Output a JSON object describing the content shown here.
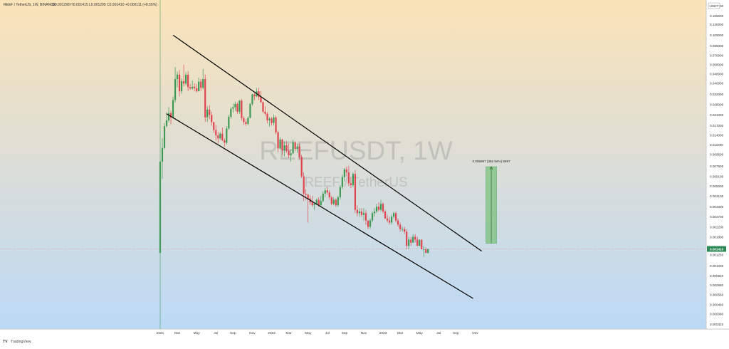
{
  "header": {
    "symbol": "REEF / TetherUS, 1W, BINANCE",
    "ohlc": "O0.001298  H0.001415  L0.001295  C0.001410  +0.000111 (+8.55%)"
  },
  "watermark": {
    "ticker": "REEFUSDT, 1W",
    "name": "REEF / TetherUS"
  },
  "currency_badge": "USDT",
  "price_label": "0.001410",
  "annotation": "0.005997 (382.94%) 5997",
  "branding": "TradingView",
  "colors": {
    "bg_top": "#fbe3b8",
    "bg_bottom": "#bcd9f6",
    "up": "#26a69a",
    "down": "#ef5350",
    "up_candle": "#3d9a55",
    "down_candle": "#e0454f",
    "current_price": "#2e8b57",
    "target_box": "#7ec27e"
  },
  "chart_data": {
    "type": "candlestick",
    "title": "REEF / TetherUS, 1W, BINANCE",
    "scale": "log",
    "y_ticks": [
      "0.190000",
      "0.155000",
      "0.130000",
      "0.105000",
      "0.085000",
      "0.070000",
      "0.058000",
      "0.048000",
      "0.040000",
      "0.032000",
      "0.026000",
      "0.021000",
      "0.017000",
      "0.014000",
      "0.011500",
      "0.009500",
      "0.007500",
      "0.006100",
      "0.005000",
      "0.004100",
      "0.003300",
      "0.002700",
      "0.002200",
      "0.001800",
      "0.001450",
      "0.001250",
      "0.001000",
      "0.000820",
      "0.000680",
      "0.000560",
      "0.000460",
      "0.000380",
      "0.000310"
    ],
    "y_tick_values": [
      0.19,
      0.155,
      0.13,
      0.105,
      0.085,
      0.07,
      0.058,
      0.048,
      0.04,
      0.032,
      0.026,
      0.021,
      0.017,
      0.014,
      0.0115,
      0.0095,
      0.0075,
      0.0061,
      0.005,
      0.0041,
      0.0033,
      0.0027,
      0.0022,
      0.0018,
      0.00145,
      0.00125,
      0.001,
      0.00082,
      0.00068,
      0.00056,
      0.00046,
      0.00038,
      0.00031
    ],
    "x_ticks": [
      "2021",
      "Mar",
      "May",
      "Jul",
      "Sep",
      "Nov",
      "2022",
      "Mar",
      "May",
      "Jul",
      "Sep",
      "Nov",
      "2023",
      "Mar",
      "May",
      "Jul",
      "Sep",
      "Nov"
    ],
    "x_tick_index": [
      0,
      8,
      17,
      26,
      34,
      43,
      52,
      60,
      69,
      78,
      86,
      95,
      104,
      112,
      121,
      130,
      138,
      147
    ],
    "candles": [
      [
        0.0013,
        0.0082,
        0.0013,
        0.0082
      ],
      [
        0.0082,
        0.0131,
        0.0058,
        0.0108
      ],
      [
        0.0108,
        0.0178,
        0.0105,
        0.0168
      ],
      [
        0.0168,
        0.0222,
        0.0163,
        0.0188
      ],
      [
        0.0188,
        0.0246,
        0.0181,
        0.0218
      ],
      [
        0.0218,
        0.0228,
        0.0175,
        0.0199
      ],
      [
        0.0199,
        0.0305,
        0.0195,
        0.0284
      ],
      [
        0.0284,
        0.0554,
        0.027,
        0.0433
      ],
      [
        0.0433,
        0.0504,
        0.0366,
        0.0474
      ],
      [
        0.0474,
        0.052,
        0.0305,
        0.0338
      ],
      [
        0.0338,
        0.0439,
        0.0322,
        0.0415
      ],
      [
        0.0415,
        0.058,
        0.0374,
        0.0395
      ],
      [
        0.0395,
        0.0495,
        0.038,
        0.0472
      ],
      [
        0.0472,
        0.051,
        0.034,
        0.0368
      ],
      [
        0.0368,
        0.0392,
        0.0348,
        0.0358
      ],
      [
        0.0358,
        0.0421,
        0.0349,
        0.0371
      ],
      [
        0.0371,
        0.0398,
        0.0338,
        0.036
      ],
      [
        0.036,
        0.0392,
        0.033,
        0.0339
      ],
      [
        0.0339,
        0.0446,
        0.0336,
        0.0411
      ],
      [
        0.0411,
        0.0433,
        0.0341,
        0.0363
      ],
      [
        0.0363,
        0.0531,
        0.0352,
        0.0433
      ],
      [
        0.0433,
        0.0474,
        0.0183,
        0.02
      ],
      [
        0.02,
        0.025,
        0.0182,
        0.0234
      ],
      [
        0.0234,
        0.0256,
        0.0193,
        0.021
      ],
      [
        0.021,
        0.0224,
        0.0169,
        0.0182
      ],
      [
        0.0182,
        0.0182,
        0.0146,
        0.0155
      ],
      [
        0.0155,
        0.0171,
        0.0125,
        0.0139
      ],
      [
        0.0139,
        0.0149,
        0.0118,
        0.0131
      ],
      [
        0.0131,
        0.0149,
        0.0128,
        0.0144
      ],
      [
        0.0144,
        0.0163,
        0.0124,
        0.0126
      ],
      [
        0.0126,
        0.0131,
        0.0111,
        0.012
      ],
      [
        0.012,
        0.0168,
        0.0116,
        0.016
      ],
      [
        0.016,
        0.0211,
        0.0156,
        0.0202
      ],
      [
        0.0202,
        0.0247,
        0.0195,
        0.0238
      ],
      [
        0.0238,
        0.0265,
        0.022,
        0.0245
      ],
      [
        0.0245,
        0.0274,
        0.0229,
        0.0262
      ],
      [
        0.0262,
        0.027,
        0.0215,
        0.0224
      ],
      [
        0.0224,
        0.0283,
        0.0215,
        0.028
      ],
      [
        0.028,
        0.0289,
        0.0188,
        0.0197
      ],
      [
        0.0197,
        0.0205,
        0.0172,
        0.0182
      ],
      [
        0.0182,
        0.0193,
        0.0168,
        0.0175
      ],
      [
        0.0175,
        0.0204,
        0.0171,
        0.0198
      ],
      [
        0.0198,
        0.0267,
        0.0196,
        0.0262
      ],
      [
        0.0262,
        0.0322,
        0.0253,
        0.0317
      ],
      [
        0.0317,
        0.0325,
        0.0283,
        0.0306
      ],
      [
        0.0306,
        0.0361,
        0.0301,
        0.0338
      ],
      [
        0.0338,
        0.0363,
        0.0283,
        0.0301
      ],
      [
        0.0301,
        0.034,
        0.0266,
        0.0272
      ],
      [
        0.0272,
        0.0275,
        0.0217,
        0.0224
      ],
      [
        0.0224,
        0.025,
        0.0207,
        0.0215
      ],
      [
        0.0215,
        0.0222,
        0.0177,
        0.0189
      ],
      [
        0.0189,
        0.0201,
        0.0166,
        0.0195
      ],
      [
        0.0195,
        0.0201,
        0.017,
        0.0179
      ],
      [
        0.0179,
        0.0212,
        0.017,
        0.02
      ],
      [
        0.02,
        0.0207,
        0.0142,
        0.0148
      ],
      [
        0.0148,
        0.0153,
        0.0099,
        0.0107
      ],
      [
        0.0107,
        0.0134,
        0.0105,
        0.0128
      ],
      [
        0.0128,
        0.013,
        0.0094,
        0.0103
      ],
      [
        0.0103,
        0.0123,
        0.0091,
        0.0114
      ],
      [
        0.0114,
        0.0124,
        0.0098,
        0.0102
      ],
      [
        0.0102,
        0.0118,
        0.0088,
        0.0093
      ],
      [
        0.0093,
        0.0105,
        0.0082,
        0.0097
      ],
      [
        0.0097,
        0.0128,
        0.0095,
        0.0121
      ],
      [
        0.0121,
        0.0124,
        0.0101,
        0.0106
      ],
      [
        0.0106,
        0.0118,
        0.0098,
        0.0111
      ],
      [
        0.0111,
        0.0118,
        0.0085,
        0.009
      ],
      [
        0.009,
        0.0094,
        0.0059,
        0.0061
      ],
      [
        0.0061,
        0.0066,
        0.0037,
        0.0043
      ],
      [
        0.0043,
        0.0047,
        0.0038,
        0.0042
      ],
      [
        0.0042,
        0.0043,
        0.0024,
        0.0039
      ],
      [
        0.0039,
        0.0042,
        0.0034,
        0.0036
      ],
      [
        0.0036,
        0.0041,
        0.0033,
        0.0034
      ],
      [
        0.0034,
        0.0036,
        0.0031,
        0.0035
      ],
      [
        0.0035,
        0.0039,
        0.0034,
        0.0038
      ],
      [
        0.0038,
        0.004,
        0.0033,
        0.0034
      ],
      [
        0.0034,
        0.0041,
        0.0033,
        0.0037
      ],
      [
        0.0037,
        0.0045,
        0.0036,
        0.0043
      ],
      [
        0.0043,
        0.0048,
        0.004,
        0.0046
      ],
      [
        0.0046,
        0.0049,
        0.0042,
        0.0044
      ],
      [
        0.0044,
        0.0046,
        0.0038,
        0.004
      ],
      [
        0.004,
        0.0041,
        0.0034,
        0.0035
      ],
      [
        0.0035,
        0.004,
        0.0034,
        0.0038
      ],
      [
        0.0038,
        0.0039,
        0.0033,
        0.0034
      ],
      [
        0.0034,
        0.0041,
        0.0033,
        0.004
      ],
      [
        0.004,
        0.0051,
        0.0038,
        0.0049
      ],
      [
        0.0049,
        0.0063,
        0.0047,
        0.006
      ],
      [
        0.006,
        0.0072,
        0.0055,
        0.007
      ],
      [
        0.007,
        0.0074,
        0.0061,
        0.0066
      ],
      [
        0.0066,
        0.0075,
        0.005,
        0.0053
      ],
      [
        0.0053,
        0.006,
        0.0048,
        0.0051
      ],
      [
        0.0051,
        0.0066,
        0.0049,
        0.0064
      ],
      [
        0.0064,
        0.0069,
        0.0029,
        0.0031
      ],
      [
        0.0031,
        0.0034,
        0.0027,
        0.0029
      ],
      [
        0.0029,
        0.0032,
        0.0027,
        0.003
      ],
      [
        0.003,
        0.0032,
        0.0027,
        0.0028
      ],
      [
        0.0028,
        0.0032,
        0.0025,
        0.0029
      ],
      [
        0.0029,
        0.0031,
        0.0023,
        0.0025
      ],
      [
        0.0025,
        0.0025,
        0.0021,
        0.0022
      ],
      [
        0.0022,
        0.0026,
        0.0021,
        0.0025
      ],
      [
        0.0025,
        0.003,
        0.0024,
        0.0029
      ],
      [
        0.0029,
        0.0032,
        0.0027,
        0.003
      ],
      [
        0.003,
        0.0035,
        0.0029,
        0.0033
      ],
      [
        0.0033,
        0.0036,
        0.003,
        0.0031
      ],
      [
        0.0031,
        0.0038,
        0.003,
        0.0035
      ],
      [
        0.0035,
        0.0036,
        0.0029,
        0.003
      ],
      [
        0.003,
        0.0031,
        0.0026,
        0.0026
      ],
      [
        0.0026,
        0.0028,
        0.0024,
        0.0025
      ],
      [
        0.0025,
        0.0027,
        0.0023,
        0.0024
      ],
      [
        0.0024,
        0.0028,
        0.0023,
        0.0027
      ],
      [
        0.0027,
        0.003,
        0.0026,
        0.0029
      ],
      [
        0.0029,
        0.003,
        0.0024,
        0.0025
      ],
      [
        0.0025,
        0.0026,
        0.0022,
        0.0023
      ],
      [
        0.0023,
        0.0024,
        0.002,
        0.0021
      ],
      [
        0.0021,
        0.0022,
        0.002,
        0.0021
      ],
      [
        0.0021,
        0.0022,
        0.0019,
        0.002
      ],
      [
        0.002,
        0.0021,
        0.0014,
        0.0015
      ],
      [
        0.0015,
        0.0018,
        0.0014,
        0.0017
      ],
      [
        0.0017,
        0.0018,
        0.0015,
        0.0016
      ],
      [
        0.0016,
        0.0019,
        0.0016,
        0.0018
      ],
      [
        0.0018,
        0.0019,
        0.0016,
        0.0017
      ],
      [
        0.0017,
        0.0018,
        0.0015,
        0.0015
      ],
      [
        0.0015,
        0.0017,
        0.0015,
        0.0017
      ],
      [
        0.0017,
        0.0017,
        0.0014,
        0.0014
      ],
      [
        0.0014,
        0.0015,
        0.0012,
        0.0014
      ],
      [
        0.0014,
        0.00145,
        0.0013,
        0.0013
      ],
      [
        0.0013,
        0.0014,
        0.00129,
        0.00141
      ]
    ],
    "channel_upper": [
      [
        6,
        0.105
      ],
      [
        150,
        0.00135
      ]
    ],
    "channel_lower": [
      [
        3,
        0.0215
      ],
      [
        146,
        0.00052
      ]
    ],
    "target_box": {
      "from_index": 152,
      "to_index": 157,
      "low": 0.00158,
      "high": 0.0074,
      "label": "0.005997 (382.94%) 5997"
    },
    "current_price": 0.00141,
    "legend_position": "top-left"
  }
}
